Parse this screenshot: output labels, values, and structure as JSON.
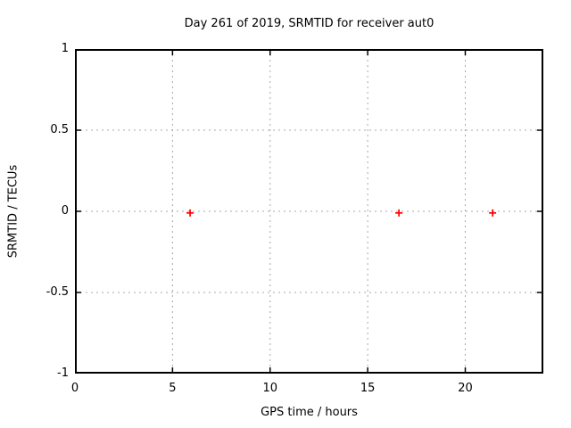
{
  "chart_data": {
    "type": "scatter",
    "title": "Day 261 of 2019, SRMTID for receiver aut0",
    "xlabel": "GPS time / hours",
    "ylabel": "SRMTID / TECUs",
    "xlim": [
      0,
      24
    ],
    "ylim": [
      -1,
      1
    ],
    "xticks": [
      0,
      5,
      10,
      15,
      20
    ],
    "xtick_labels": [
      "0",
      "5",
      "10",
      "15",
      "20"
    ],
    "yticks": [
      -1,
      -0.5,
      0,
      0.5,
      1
    ],
    "ytick_labels": [
      "-1",
      "-0.5",
      "0",
      "0.5",
      "1"
    ],
    "grid": true,
    "grid_style": "dashed",
    "legend_position": "none",
    "series": [
      {
        "name": "SRMTID",
        "marker": "plus",
        "color": "#ff0000",
        "points": [
          {
            "x": 5.9,
            "y": -0.01
          },
          {
            "x": 16.6,
            "y": -0.01
          },
          {
            "x": 21.4,
            "y": -0.01
          }
        ]
      }
    ],
    "colors": {
      "background": "#ffffff",
      "border": "#000000",
      "grid": "#a8a8a8",
      "text": "#000000",
      "marker": "#ff0000"
    }
  }
}
